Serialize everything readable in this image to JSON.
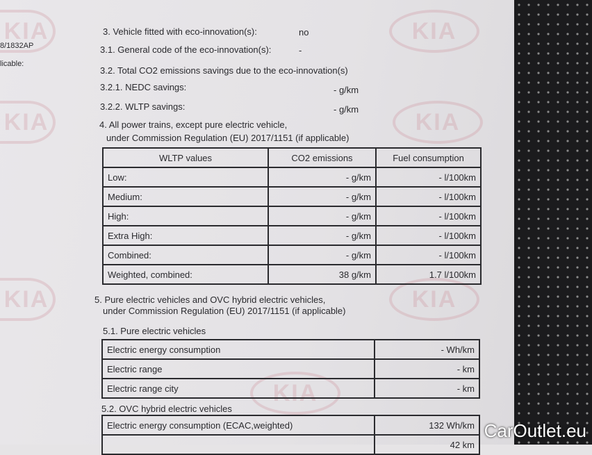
{
  "margin": {
    "ref": "8/1832AP",
    "applicable": "licable:"
  },
  "lines": {
    "s3": "3. Vehicle fitted with eco-innovation(s):",
    "s3_val": "no",
    "s31": "3.1. General code of the eco-innovation(s):",
    "s31_val": "-",
    "s32": "3.2. Total CO2 emissions savings due to the eco-innovation(s)",
    "s321": "3.2.1. NEDC savings:",
    "s321_val": "- g/km",
    "s322": "3.2.2. WLTP savings:",
    "s322_val": "- g/km",
    "s4a": "4. All power trains, except pure electric vehicle,",
    "s4b": "under Commission Regulation (EU) 2017/1151 (if applicable)",
    "s5a": "5. Pure electric vehicles and OVC hybrid electric vehicles,",
    "s5b": "under Commission Regulation (EU) 2017/1151 (if applicable)",
    "s51": "5.1. Pure electric vehicles",
    "s52": "5.2. OVC hybrid electric vehicles"
  },
  "wltp": {
    "headers": [
      "WLTP values",
      "CO2 emissions",
      "Fuel consumption"
    ],
    "rows": [
      [
        "Low:",
        "- g/km",
        "- l/100km"
      ],
      [
        "Medium:",
        "- g/km",
        "- l/100km"
      ],
      [
        "High:",
        "- g/km",
        "- l/100km"
      ],
      [
        "Extra High:",
        "- g/km",
        "- l/100km"
      ],
      [
        "Combined:",
        "- g/km",
        "- l/100km"
      ],
      [
        "Weighted, combined:",
        "38 g/km",
        "1.7 l/100km"
      ]
    ]
  },
  "pev": [
    [
      "Electric energy consumption",
      "- Wh/km"
    ],
    [
      "Electric range",
      "- km"
    ],
    [
      "Electric range city",
      "- km"
    ]
  ],
  "ovc": [
    [
      "Electric energy consumption (ECAC,weighted)",
      "132 Wh/km"
    ],
    [
      "",
      "42 km"
    ]
  ],
  "watermark": "KIA",
  "brand": "CarOutlet.eu"
}
